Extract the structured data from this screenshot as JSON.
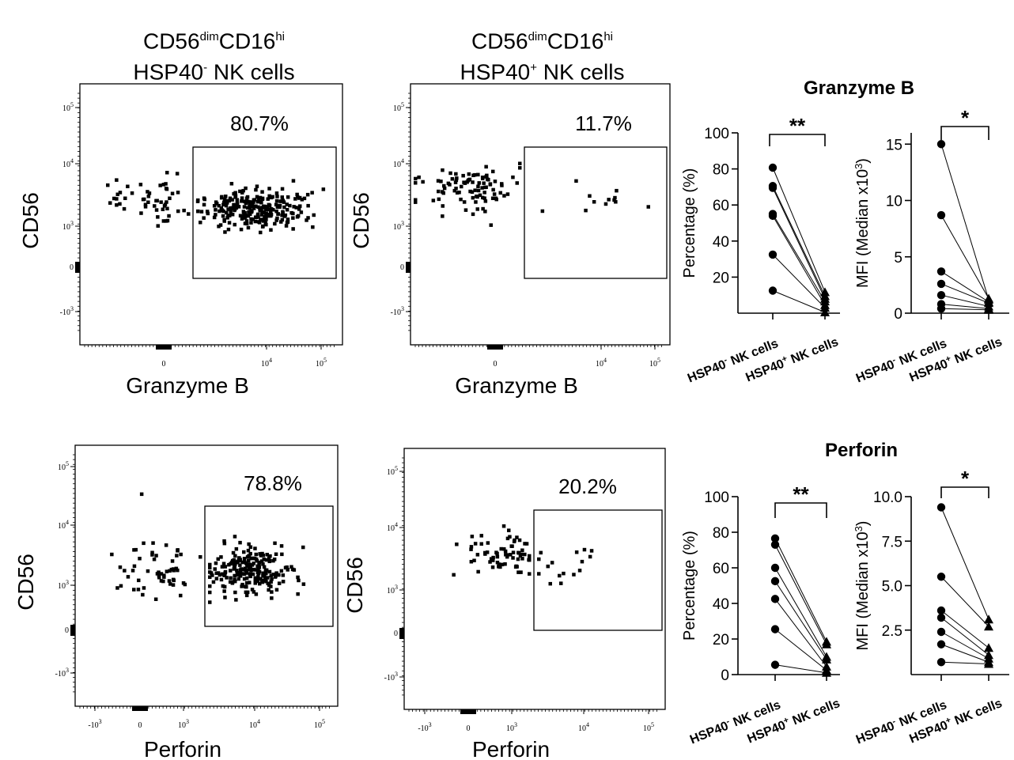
{
  "figure_titles": {
    "col1": {
      "line1_base": "CD56",
      "line1_sup1": "dim",
      "line1_mid": "CD16",
      "line1_sup2": "hi",
      "line2_base": "HSP40",
      "line2_sup": "-",
      "line2_rest": " NK cells"
    },
    "col2": {
      "line1_base": "CD56",
      "line1_sup1": "dim",
      "line1_mid": "CD16",
      "line1_sup2": "hi",
      "line2_base": "HSP40",
      "line2_sup": "+",
      "line2_rest": " NK cells"
    }
  },
  "section_titles": {
    "row1": "Granzyme B",
    "row2": "Perforin"
  },
  "chart_data": [
    {
      "id": "flow-gzmb-neg",
      "type": "scatter",
      "xlabel": "Granzyme B",
      "ylabel": "CD56",
      "gate_percent": "80.7%",
      "x_tick_labels": [
        "0",
        "10^4",
        "10^5"
      ],
      "y_tick_labels": [
        "10^5",
        "10^4",
        "10^3",
        "0",
        "-10^3"
      ],
      "axis_scale": "biexponential",
      "gated_event_fraction": 0.807
    },
    {
      "id": "flow-gzmb-pos",
      "type": "scatter",
      "xlabel": "Granzyme B",
      "ylabel": "CD56",
      "gate_percent": "11.7%",
      "x_tick_labels": [
        "0",
        "10^4",
        "10^5"
      ],
      "y_tick_labels": [
        "10^5",
        "10^4",
        "10^3",
        "0",
        "-10^3"
      ],
      "axis_scale": "biexponential",
      "gated_event_fraction": 0.117
    },
    {
      "id": "flow-prf-neg",
      "type": "scatter",
      "xlabel": "Perforin",
      "ylabel": "CD56",
      "gate_percent": "78.8%",
      "x_tick_labels": [
        "-10^3",
        "0",
        "10^3",
        "10^4",
        "10^5"
      ],
      "y_tick_labels": [
        "10^5",
        "10^4",
        "10^3",
        "0",
        "-10^3"
      ],
      "axis_scale": "biexponential",
      "gated_event_fraction": 0.788
    },
    {
      "id": "flow-prf-pos",
      "type": "scatter",
      "xlabel": "Perforin",
      "ylabel": "CD56",
      "gate_percent": "20.2%",
      "x_tick_labels": [
        "-10^3",
        "0",
        "10^3",
        "10^4",
        "10^5"
      ],
      "y_tick_labels": [
        "10^5",
        "10^4",
        "10^3",
        "0",
        "-10^3"
      ],
      "axis_scale": "biexponential",
      "gated_event_fraction": 0.202
    },
    {
      "id": "paired-gzmb-pct",
      "type": "line",
      "title": "Granzyme B",
      "ylabel": "Percentage (%)",
      "ylim": [
        0,
        100
      ],
      "yticks": [
        20,
        40,
        60,
        80,
        100
      ],
      "categories": [
        "HSP40- NK cells",
        "HSP40+ NK cells"
      ],
      "significance": "**",
      "pairs": [
        [
          80.7,
          11.7
        ],
        [
          70.5,
          9.5
        ],
        [
          69.5,
          8.0
        ],
        [
          55.0,
          6.5
        ],
        [
          54.0,
          4.5
        ],
        [
          32.5,
          3.0
        ],
        [
          12.5,
          0.5
        ]
      ]
    },
    {
      "id": "paired-gzmb-mfi",
      "type": "line",
      "title": "Granzyme B",
      "ylabel": "MFI (Median x10^3)",
      "ylim": [
        0,
        16
      ],
      "yticks": [
        0,
        5,
        10,
        15
      ],
      "categories": [
        "HSP40- NK cells",
        "HSP40+ NK cells"
      ],
      "significance": "*",
      "pairs": [
        [
          15.0,
          1.2
        ],
        [
          8.7,
          1.3
        ],
        [
          3.7,
          1.0
        ],
        [
          2.6,
          0.9
        ],
        [
          1.6,
          0.6
        ],
        [
          0.8,
          0.4
        ],
        [
          0.4,
          0.3
        ]
      ]
    },
    {
      "id": "paired-prf-pct",
      "type": "line",
      "title": "Perforin",
      "ylabel": "Percentage (%)",
      "ylim": [
        0,
        100
      ],
      "yticks": [
        0,
        20,
        40,
        60,
        80,
        100
      ],
      "categories": [
        "HSP40- NK cells",
        "HSP40+ NK cells"
      ],
      "significance": "**",
      "pairs": [
        [
          76.5,
          18.5
        ],
        [
          73.0,
          17.0
        ],
        [
          60.0,
          10.0
        ],
        [
          52.5,
          8.5
        ],
        [
          42.5,
          4.5
        ],
        [
          25.5,
          2.5
        ],
        [
          5.5,
          1.0
        ]
      ]
    },
    {
      "id": "paired-prf-mfi",
      "type": "line",
      "title": "Perforin",
      "ylabel": "MFI (Median x10^3)",
      "ylim": [
        0,
        10
      ],
      "yticks": [
        2.5,
        5.0,
        7.5,
        10.0
      ],
      "categories": [
        "HSP40- NK cells",
        "HSP40+ NK cells"
      ],
      "significance": "*",
      "pairs": [
        [
          9.4,
          3.1
        ],
        [
          5.5,
          2.7
        ],
        [
          3.6,
          1.5
        ],
        [
          3.2,
          1.1
        ],
        [
          2.4,
          0.9
        ],
        [
          1.7,
          0.7
        ],
        [
          0.7,
          0.6
        ]
      ]
    }
  ]
}
